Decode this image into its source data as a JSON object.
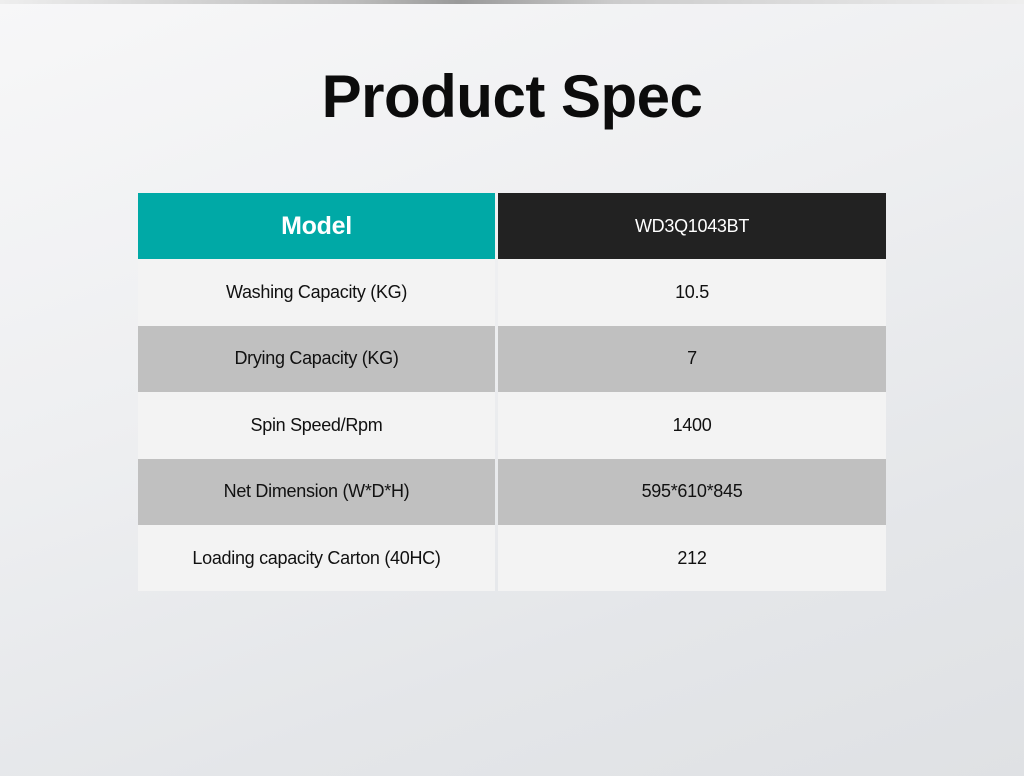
{
  "title": "Product Spec",
  "colors": {
    "header_label_bg": "#00a9a6",
    "header_value_bg": "#222222",
    "row_light": "#f3f3f3",
    "row_dark": "#c0c0c0"
  },
  "table": {
    "header": {
      "label": "Model",
      "value": "WD3Q1043BT"
    },
    "rows": [
      {
        "label": "Washing Capacity (KG)",
        "value": "10.5"
      },
      {
        "label": "Drying Capacity (KG)",
        "value": "7"
      },
      {
        "label": "Spin Speed/Rpm",
        "value": "1400"
      },
      {
        "label": "Net Dimension (W*D*H)",
        "value": "595*610*845"
      },
      {
        "label": "Loading capacity Carton (40HC)",
        "value": "212"
      }
    ]
  }
}
